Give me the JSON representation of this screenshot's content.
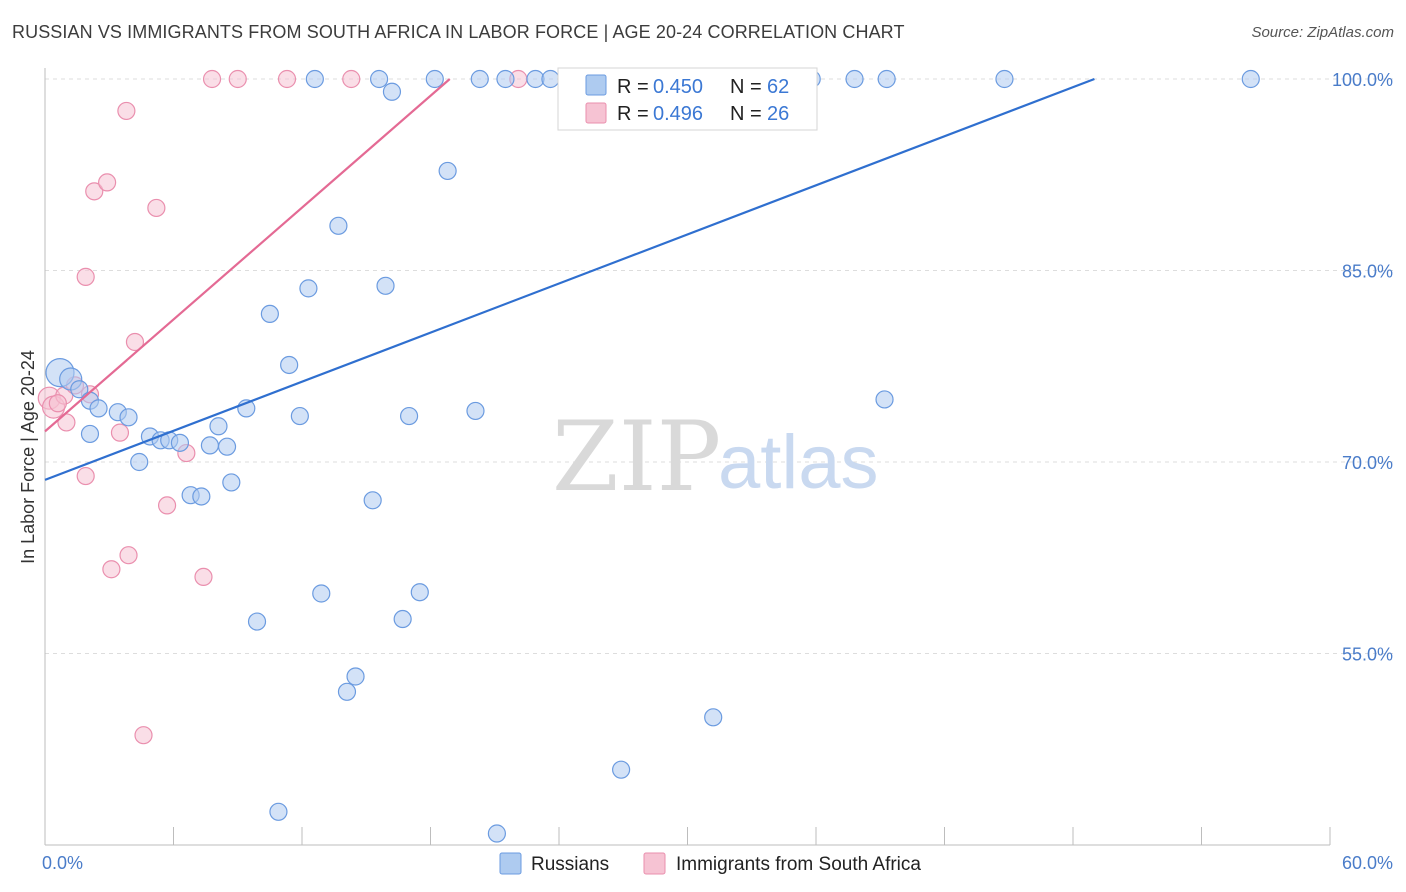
{
  "title": "RUSSIAN VS IMMIGRANTS FROM SOUTH AFRICA IN LABOR FORCE | AGE 20-24 CORRELATION CHART",
  "source": "Source: ZipAtlas.com",
  "watermark": {
    "zip": "ZIP",
    "atlas": "atlas"
  },
  "colors": {
    "blue_fill": "#aecbf0",
    "blue_stroke": "#6b9be0",
    "blue_line": "#2f6fcf",
    "pink_fill": "#f6c3d3",
    "pink_stroke": "#ea8fae",
    "pink_line": "#e46a94",
    "tick_text": "#4a7cc9",
    "grid": "#dddddd"
  },
  "legend": {
    "rows": [
      {
        "r_label": "R =",
        "r_value": "0.450",
        "n_label": "N =",
        "n_value": "62",
        "series": "Russians"
      },
      {
        "r_label": "R =",
        "r_value": "0.496",
        "n_label": "N =",
        "n_value": "26",
        "series": "Immigrants from South Africa"
      }
    ]
  },
  "chart_data": {
    "type": "scatter",
    "title": "RUSSIAN VS IMMIGRANTS FROM SOUTH AFRICA IN LABOR FORCE | AGE 20-24 CORRELATION CHART",
    "xlabel": "",
    "ylabel": "In Labor Force | Age 20-24",
    "xlim": [
      0,
      60
    ],
    "ylim": [
      40,
      100
    ],
    "x_tick_labels": [
      "0.0%",
      "60.0%"
    ],
    "y_ticks": [
      55,
      70,
      85,
      100
    ],
    "y_tick_labels": [
      "55.0%",
      "70.0%",
      "85.0%",
      "100.0%"
    ],
    "grid": true,
    "legend_position": "top-center",
    "series": [
      {
        "name": "Russians",
        "r": 0.45,
        "n": 62,
        "trend": {
          "x": [
            0,
            49
          ],
          "y": [
            68.6,
            100
          ]
        },
        "points": [
          {
            "x": 0.7,
            "y": 77.0,
            "s": 3
          },
          {
            "x": 1.2,
            "y": 76.5,
            "s": 2
          },
          {
            "x": 1.6,
            "y": 75.7,
            "s": 1
          },
          {
            "x": 2.1,
            "y": 74.8,
            "s": 1
          },
          {
            "x": 2.5,
            "y": 74.2,
            "s": 1
          },
          {
            "x": 3.4,
            "y": 73.9,
            "s": 1
          },
          {
            "x": 3.9,
            "y": 73.5,
            "s": 1
          },
          {
            "x": 2.1,
            "y": 72.2,
            "s": 1
          },
          {
            "x": 4.9,
            "y": 72.0,
            "s": 1
          },
          {
            "x": 5.4,
            "y": 71.7,
            "s": 1
          },
          {
            "x": 5.8,
            "y": 71.7,
            "s": 1
          },
          {
            "x": 6.3,
            "y": 71.5,
            "s": 1
          },
          {
            "x": 4.4,
            "y": 70.0,
            "s": 1
          },
          {
            "x": 7.7,
            "y": 71.3,
            "s": 1
          },
          {
            "x": 8.5,
            "y": 71.2,
            "s": 1
          },
          {
            "x": 8.1,
            "y": 72.8,
            "s": 1
          },
          {
            "x": 9.4,
            "y": 74.2,
            "s": 1
          },
          {
            "x": 8.7,
            "y": 68.4,
            "s": 1
          },
          {
            "x": 6.8,
            "y": 67.4,
            "s": 1
          },
          {
            "x": 7.3,
            "y": 67.3,
            "s": 1
          },
          {
            "x": 11.4,
            "y": 77.6,
            "s": 1
          },
          {
            "x": 10.5,
            "y": 81.6,
            "s": 1
          },
          {
            "x": 12.3,
            "y": 83.6,
            "s": 1
          },
          {
            "x": 11.9,
            "y": 73.6,
            "s": 1
          },
          {
            "x": 13.7,
            "y": 88.5,
            "s": 1
          },
          {
            "x": 15.9,
            "y": 83.8,
            "s": 1
          },
          {
            "x": 15.3,
            "y": 67.0,
            "s": 1
          },
          {
            "x": 17.0,
            "y": 73.6,
            "s": 1
          },
          {
            "x": 18.8,
            "y": 92.8,
            "s": 1
          },
          {
            "x": 20.1,
            "y": 74.0,
            "s": 1
          },
          {
            "x": 12.9,
            "y": 59.7,
            "s": 1
          },
          {
            "x": 17.5,
            "y": 59.8,
            "s": 1
          },
          {
            "x": 16.7,
            "y": 57.7,
            "s": 1
          },
          {
            "x": 9.9,
            "y": 57.5,
            "s": 1
          },
          {
            "x": 14.5,
            "y": 53.2,
            "s": 1
          },
          {
            "x": 14.1,
            "y": 52.0,
            "s": 1
          },
          {
            "x": 31.2,
            "y": 50.0,
            "s": 1
          },
          {
            "x": 26.9,
            "y": 45.9,
            "s": 1
          },
          {
            "x": 10.9,
            "y": 42.6,
            "s": 1
          },
          {
            "x": 21.1,
            "y": 40.9,
            "s": 1
          },
          {
            "x": 39.2,
            "y": 74.9,
            "s": 1
          },
          {
            "x": 16.2,
            "y": 99.0,
            "s": 1
          },
          {
            "x": 12.6,
            "y": 100,
            "s": 1
          },
          {
            "x": 15.6,
            "y": 100,
            "s": 1
          },
          {
            "x": 18.2,
            "y": 100,
            "s": 1
          },
          {
            "x": 20.3,
            "y": 100,
            "s": 1
          },
          {
            "x": 21.5,
            "y": 100,
            "s": 1
          },
          {
            "x": 22.9,
            "y": 100,
            "s": 1
          },
          {
            "x": 23.6,
            "y": 100,
            "s": 1
          },
          {
            "x": 24.5,
            "y": 100,
            "s": 1
          },
          {
            "x": 25.2,
            "y": 100,
            "s": 1
          },
          {
            "x": 26.1,
            "y": 100,
            "s": 1
          },
          {
            "x": 27.4,
            "y": 100,
            "s": 1
          },
          {
            "x": 29.3,
            "y": 100,
            "s": 1
          },
          {
            "x": 31.0,
            "y": 100,
            "s": 1
          },
          {
            "x": 32.8,
            "y": 100,
            "s": 1
          },
          {
            "x": 35.8,
            "y": 100,
            "s": 1
          },
          {
            "x": 37.8,
            "y": 100,
            "s": 1
          },
          {
            "x": 39.3,
            "y": 100,
            "s": 1
          },
          {
            "x": 44.8,
            "y": 100,
            "s": 1
          },
          {
            "x": 56.3,
            "y": 100,
            "s": 1
          },
          {
            "x": 28.4,
            "y": 100,
            "s": 1
          }
        ]
      },
      {
        "name": "Immigrants from South Africa",
        "r": 0.496,
        "n": 26,
        "trend": {
          "x": [
            0,
            18.9
          ],
          "y": [
            72.4,
            100
          ]
        },
        "points": [
          {
            "x": 0.2,
            "y": 75.0,
            "s": 2
          },
          {
            "x": 0.4,
            "y": 74.3,
            "s": 2
          },
          {
            "x": 0.9,
            "y": 75.2,
            "s": 1
          },
          {
            "x": 1.0,
            "y": 73.1,
            "s": 1
          },
          {
            "x": 2.1,
            "y": 75.3,
            "s": 1
          },
          {
            "x": 1.9,
            "y": 68.9,
            "s": 1
          },
          {
            "x": 3.5,
            "y": 72.3,
            "s": 1
          },
          {
            "x": 4.2,
            "y": 79.4,
            "s": 1
          },
          {
            "x": 1.9,
            "y": 84.5,
            "s": 1
          },
          {
            "x": 2.3,
            "y": 91.2,
            "s": 1
          },
          {
            "x": 2.9,
            "y": 91.9,
            "s": 1
          },
          {
            "x": 5.2,
            "y": 89.9,
            "s": 1
          },
          {
            "x": 3.8,
            "y": 97.5,
            "s": 1
          },
          {
            "x": 6.6,
            "y": 70.7,
            "s": 1
          },
          {
            "x": 5.7,
            "y": 66.6,
            "s": 1
          },
          {
            "x": 3.9,
            "y": 62.7,
            "s": 1
          },
          {
            "x": 3.1,
            "y": 61.6,
            "s": 1
          },
          {
            "x": 7.4,
            "y": 61.0,
            "s": 1
          },
          {
            "x": 4.6,
            "y": 48.6,
            "s": 1
          },
          {
            "x": 7.8,
            "y": 100,
            "s": 1
          },
          {
            "x": 9.0,
            "y": 100,
            "s": 1
          },
          {
            "x": 11.3,
            "y": 100,
            "s": 1
          },
          {
            "x": 14.3,
            "y": 100,
            "s": 1
          },
          {
            "x": 22.1,
            "y": 100,
            "s": 1
          },
          {
            "x": 1.4,
            "y": 76.0,
            "s": 1
          },
          {
            "x": 0.6,
            "y": 74.6,
            "s": 1
          }
        ]
      }
    ]
  }
}
